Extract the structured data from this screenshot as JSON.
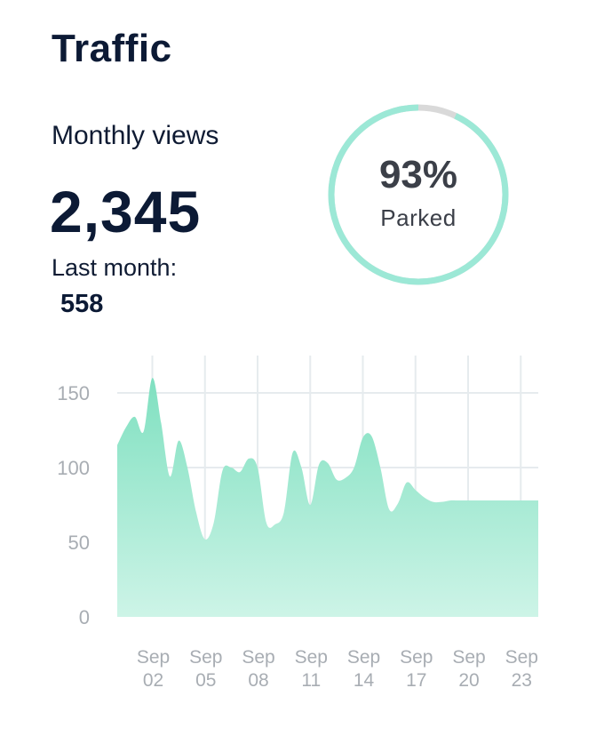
{
  "header": {
    "title": "Traffic"
  },
  "summary": {
    "monthly_label": "Monthly views",
    "monthly_value": "2,345",
    "last_month_label": "Last month:",
    "last_month_value": "558"
  },
  "gauge": {
    "value_text": "93%",
    "fraction": 0.93,
    "label": "Parked",
    "color": "#9ce8d6",
    "track_color": "#d9d9d9"
  },
  "chart_data": {
    "type": "area",
    "title": "",
    "xlabel": "",
    "ylabel": "",
    "x_tick_labels": [
      [
        "Sep",
        "02"
      ],
      [
        "Sep",
        "05"
      ],
      [
        "Sep",
        "08"
      ],
      [
        "Sep",
        "11"
      ],
      [
        "Sep",
        "14"
      ],
      [
        "Sep",
        "17"
      ],
      [
        "Sep",
        "20"
      ],
      [
        "Sep",
        "23"
      ]
    ],
    "x_tick_positions": [
      2,
      5,
      8,
      11,
      14,
      17,
      20,
      23
    ],
    "y_ticks": [
      0,
      50,
      100,
      150
    ],
    "ylim": [
      0,
      175
    ],
    "xlim": [
      0,
      24
    ],
    "grid": true,
    "colors": {
      "fill_top": "#7fe0c0",
      "fill_bottom": "#cdf4e7",
      "grid": "#e6ebee"
    },
    "series": [
      {
        "x": [
          0,
          0.5,
          1,
          1.5,
          2,
          2.5,
          3,
          3.5,
          4,
          4.5,
          5,
          5.5,
          6,
          6.5,
          7,
          7.5,
          8,
          8.5,
          9,
          9.5,
          10,
          10.5,
          11,
          11.5,
          12,
          12.5,
          13,
          13.5,
          14,
          14.5,
          15,
          15.5,
          16,
          16.5,
          17,
          17.5,
          18,
          18.5,
          19,
          19.5,
          20,
          20.5,
          21,
          21.5,
          22,
          22.5,
          23,
          23.5,
          24
        ],
        "values": [
          115,
          127,
          134,
          124,
          160,
          130,
          94,
          118,
          100,
          70,
          52,
          63,
          98,
          100,
          97,
          106,
          100,
          63,
          62,
          70,
          110,
          100,
          75,
          102,
          103,
          92,
          93,
          100,
          120,
          121,
          100,
          72,
          76,
          90,
          85,
          80,
          77,
          77,
          78,
          78,
          78,
          78,
          78,
          78,
          78,
          78,
          78,
          78,
          78
        ]
      }
    ]
  }
}
